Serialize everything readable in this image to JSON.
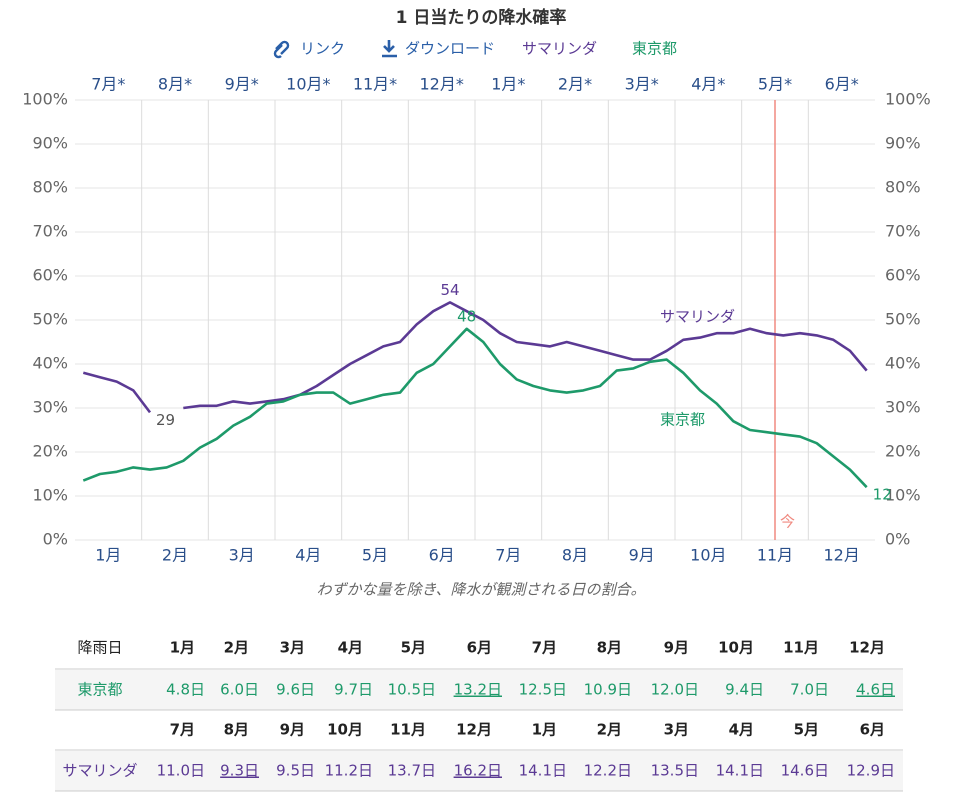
{
  "chart_data": {
    "type": "line",
    "title": "1 日当たりの降水確率",
    "links": [
      "リンク",
      "ダウンロード"
    ],
    "subtitle": "わずかな量を除き、降水が観測される日の割合。",
    "x_bottom_labels": [
      "1月",
      "2月",
      "3月",
      "4月",
      "5月",
      "6月",
      "7月",
      "8月",
      "9月",
      "10月",
      "11月",
      "12月"
    ],
    "x_top_labels": [
      "7月*",
      "8月*",
      "9月*",
      "10月*",
      "11月*",
      "12月*",
      "1月*",
      "2月*",
      "3月*",
      "4月*",
      "5月*",
      "6月*"
    ],
    "ylim": [
      0,
      100
    ],
    "yticks": [
      {
        "value": 0,
        "label": "0%"
      },
      {
        "value": 10,
        "label": "10%"
      },
      {
        "value": 20,
        "label": "20%"
      },
      {
        "value": 30,
        "label": "30%"
      },
      {
        "value": 40,
        "label": "40%"
      },
      {
        "value": 50,
        "label": "50%"
      },
      {
        "value": 60,
        "label": "60%"
      },
      {
        "value": 70,
        "label": "70%"
      },
      {
        "value": 80,
        "label": "80%"
      },
      {
        "value": 90,
        "label": "90%"
      },
      {
        "value": 100,
        "label": "100%"
      }
    ],
    "grid": true,
    "now": {
      "label": "今",
      "category": "11月",
      "color": "#f08a80"
    },
    "series": [
      {
        "name": "サマリンダ",
        "color": "#5b3a94",
        "values": [
          38,
          37,
          36,
          34,
          29,
          null,
          30,
          30.5,
          30.5,
          31.5,
          31,
          31.5,
          32,
          33,
          35,
          37.5,
          40,
          42,
          44,
          45,
          49,
          52,
          54,
          52,
          50,
          47,
          45,
          44.5,
          44,
          45,
          44,
          43,
          42,
          41,
          41,
          43,
          45.5,
          46,
          47,
          47,
          48,
          47,
          46.5,
          47,
          46.5,
          45.5,
          43,
          38.5
        ],
        "value_labels": [
          null,
          null,
          null,
          null,
          "29",
          null,
          null,
          null,
          null,
          null,
          null,
          null,
          null,
          null,
          null,
          null,
          null,
          null,
          null,
          null,
          null,
          null,
          "54",
          null,
          null,
          null,
          null,
          null,
          null,
          null,
          null,
          null,
          null,
          null,
          null,
          null,
          null,
          null,
          null,
          null,
          null,
          null,
          null,
          null,
          null,
          null,
          null,
          null
        ]
      },
      {
        "name": "東京都",
        "color": "#1e9a6a",
        "values": [
          13.5,
          15,
          15.5,
          16.5,
          16,
          16.5,
          18,
          21,
          23,
          26,
          28,
          31,
          31.5,
          33,
          33.5,
          33.5,
          31,
          32,
          33,
          33.5,
          38,
          40,
          44,
          48,
          45,
          40,
          36.5,
          35,
          34,
          33.5,
          34,
          35,
          38.5,
          39,
          40.5,
          41,
          38,
          34,
          31,
          27,
          25,
          24.5,
          24,
          23.5,
          22,
          19,
          16,
          12
        ],
        "value_labels": [
          null,
          null,
          null,
          null,
          null,
          null,
          null,
          null,
          null,
          null,
          null,
          null,
          null,
          null,
          null,
          null,
          null,
          null,
          null,
          null,
          null,
          null,
          null,
          "48",
          null,
          null,
          null,
          null,
          null,
          null,
          null,
          null,
          null,
          null,
          null,
          null,
          null,
          null,
          null,
          null,
          null,
          null,
          null,
          null,
          null,
          null,
          null,
          "12"
        ]
      }
    ]
  },
  "table": {
    "tokyo_header": [
      "降雨日",
      "1月",
      "2月",
      "3月",
      "4月",
      "5月",
      "6月",
      "7月",
      "8月",
      "9月",
      "10月",
      "11月",
      "12月"
    ],
    "tokyo_row": [
      "東京都",
      "4.8日",
      "6.0日",
      "9.6日",
      "9.7日",
      "10.5日",
      "13.2日",
      "12.5日",
      "10.9日",
      "12.0日",
      "9.4日",
      "7.0日",
      "4.6日"
    ],
    "tokyo_underlined": [
      6,
      12
    ],
    "samarinda_header": [
      "7月",
      "8月",
      "9月",
      "10月",
      "11月",
      "12月",
      "1月",
      "2月",
      "3月",
      "4月",
      "5月",
      "6月"
    ],
    "samarinda_row": [
      "サマリンダ",
      "11.0日",
      "9.3日",
      "9.5日",
      "11.2日",
      "13.7日",
      "16.2日",
      "14.1日",
      "12.2日",
      "13.5日",
      "14.1日",
      "14.6日",
      "12.9日"
    ],
    "samarinda_underlined": [
      2,
      6
    ]
  }
}
